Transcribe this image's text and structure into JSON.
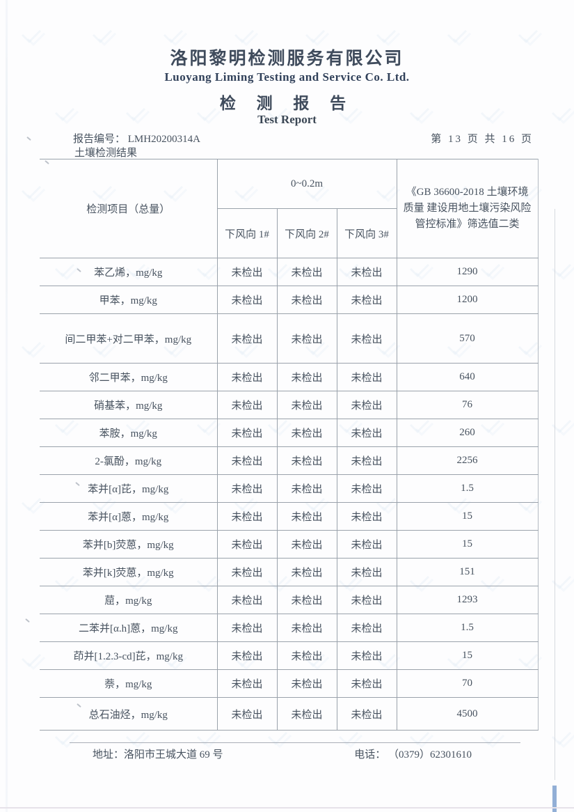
{
  "header": {
    "company_cn": "洛阳黎明检测服务有限公司",
    "company_en": "Luoyang Liming Testing and Service Co. Ltd.",
    "title_cn": "检 测 报 告",
    "title_en": "Test Report",
    "report_no_label": "报告编号：",
    "report_no": "LMH20200314A",
    "page_indicator": "第 13 页 共 16 页",
    "section_title": "土壤检测结果"
  },
  "table": {
    "header": {
      "item_col": "检测项目（总量）",
      "depth_span": "0~0.2m",
      "sub_cols": [
        "下风向 1#",
        "下风向 2#",
        "下风向 3#"
      ],
      "limit_col": "《GB 36600-2018 土壤环境质量 建设用地土壤污染风险管控标准》筛选值二类"
    },
    "rows": [
      {
        "item": "苯乙烯，mg/kg",
        "results": [
          "未检出",
          "未检出",
          "未检出"
        ],
        "limit": "1290"
      },
      {
        "item": "甲苯，mg/kg",
        "results": [
          "未检出",
          "未检出",
          "未检出"
        ],
        "limit": "1200"
      },
      {
        "item": "间二甲苯+对二甲苯，mg/kg",
        "results": [
          "未检出",
          "未检出",
          "未检出"
        ],
        "limit": "570"
      },
      {
        "item": "邻二甲苯，mg/kg",
        "results": [
          "未检出",
          "未检出",
          "未检出"
        ],
        "limit": "640"
      },
      {
        "item": "硝基苯，mg/kg",
        "results": [
          "未检出",
          "未检出",
          "未检出"
        ],
        "limit": "76"
      },
      {
        "item": "苯胺，mg/kg",
        "results": [
          "未检出",
          "未检出",
          "未检出"
        ],
        "limit": "260"
      },
      {
        "item": "2-氯酚，mg/kg",
        "results": [
          "未检出",
          "未检出",
          "未检出"
        ],
        "limit": "2256"
      },
      {
        "item": "苯并[α]芘，mg/kg",
        "results": [
          "未检出",
          "未检出",
          "未检出"
        ],
        "limit": "1.5"
      },
      {
        "item": "苯并[α]蒽，mg/kg",
        "results": [
          "未检出",
          "未检出",
          "未检出"
        ],
        "limit": "15"
      },
      {
        "item": "苯并[b]荧蒽，mg/kg",
        "results": [
          "未检出",
          "未检出",
          "未检出"
        ],
        "limit": "15"
      },
      {
        "item": "苯并[k]荧蒽，mg/kg",
        "results": [
          "未检出",
          "未检出",
          "未检出"
        ],
        "limit": "151"
      },
      {
        "item": "䓛，mg/kg",
        "results": [
          "未检出",
          "未检出",
          "未检出"
        ],
        "limit": "1293"
      },
      {
        "item": "二苯并[α.h]蒽，mg/kg",
        "results": [
          "未检出",
          "未检出",
          "未检出"
        ],
        "limit": "1.5"
      },
      {
        "item": "茚并[1.2.3-cd]芘，mg/kg",
        "results": [
          "未检出",
          "未检出",
          "未检出"
        ],
        "limit": "15"
      },
      {
        "item": "萘，mg/kg",
        "results": [
          "未检出",
          "未检出",
          "未检出"
        ],
        "limit": "70"
      },
      {
        "item": "总石油烃，mg/kg",
        "results": [
          "未检出",
          "未检出",
          "未检出"
        ],
        "limit": "4500"
      }
    ]
  },
  "footer": {
    "address_label": "地址：",
    "address": "洛阳市王城大道 69 号",
    "phone_label": "电话：",
    "phone": "（0379）62301610"
  },
  "colors": {
    "ink": "#47525f",
    "title_ink": "#3f4b5c",
    "border": "#9aa2ab",
    "watermark": "#c3d6ea",
    "scan_blue_edge": "#3a6fb5"
  }
}
